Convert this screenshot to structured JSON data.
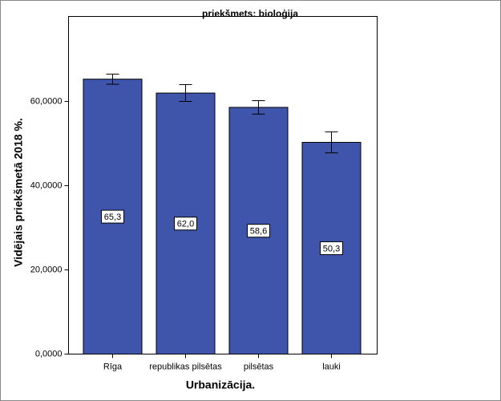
{
  "chart_data": {
    "type": "bar",
    "title": "priekšmets: bioloģija",
    "x_label": "Urbanizācija.",
    "y_label": "Vidējais priekšmetā 2018 %.",
    "categories": [
      "Rīga",
      "republikas pilsētas",
      "pilsētas",
      "lauki"
    ],
    "values": [
      65.3,
      62.0,
      58.6,
      50.3
    ],
    "value_labels": [
      "65,3",
      "62,0",
      "58,6",
      "50,3"
    ],
    "errors": [
      1.2,
      2.0,
      1.6,
      2.5
    ],
    "color": "#3e55ab",
    "ylim": [
      0,
      80.2
    ],
    "yticks": [
      {
        "value": 0,
        "label": "0,0000"
      },
      {
        "value": 20,
        "label": "20,0000"
      },
      {
        "value": 40,
        "label": "40,0000"
      },
      {
        "value": 60,
        "label": "60,0000"
      }
    ]
  }
}
